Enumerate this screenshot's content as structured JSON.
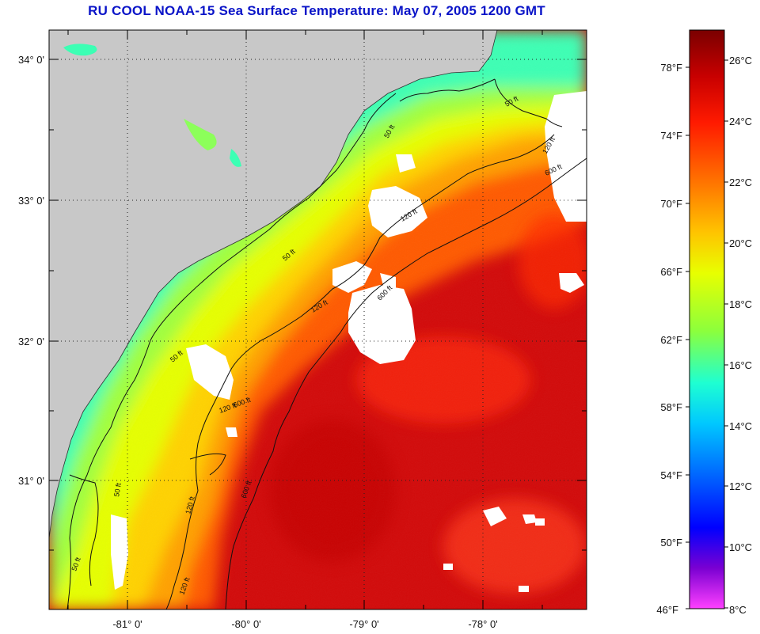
{
  "title": "RU COOL  NOAA-15  Sea Surface Temperature:  May 07, 2005 1200 GMT",
  "map": {
    "latitude_labels": [
      "34° 0'",
      "33° 0'",
      "32° 0'",
      "31° 0'"
    ],
    "longitude_labels": [
      "-81° 0'",
      "-80° 0'",
      "-79° 0'",
      "-78° 0'"
    ],
    "contour_labels": [
      "50 ft",
      "120 ft",
      "600 ft",
      "50 ft",
      "120 ft",
      "600 ft",
      "50 ft",
      "120 ft",
      "600 ft",
      "50 ft",
      "120 ft",
      "600 ft",
      "50 ft",
      "120 ft",
      "50 ft",
      "120 ft"
    ],
    "colors": {
      "land": "#c8c8c8",
      "cloud": "#ffffff",
      "contour": "#111111",
      "grid": "#222222"
    }
  },
  "colorbar": {
    "fahrenheit_labels": [
      "78°F",
      "74°F",
      "70°F",
      "66°F",
      "62°F",
      "58°F",
      "54°F",
      "50°F",
      "46°F"
    ],
    "celsius_labels": [
      "26°C",
      "24°C",
      "22°C",
      "20°C",
      "18°C",
      "16°C",
      "14°C",
      "12°C",
      "10°C",
      "8°C"
    ],
    "gradient_colors": [
      "#7a0000",
      "#c80000",
      "#ff1a00",
      "#ff7a00",
      "#ffc400",
      "#e8ff00",
      "#8cff3c",
      "#1effd2",
      "#00c8ff",
      "#005aff",
      "#0000ff",
      "#7a00d2",
      "#ff40ff"
    ]
  }
}
